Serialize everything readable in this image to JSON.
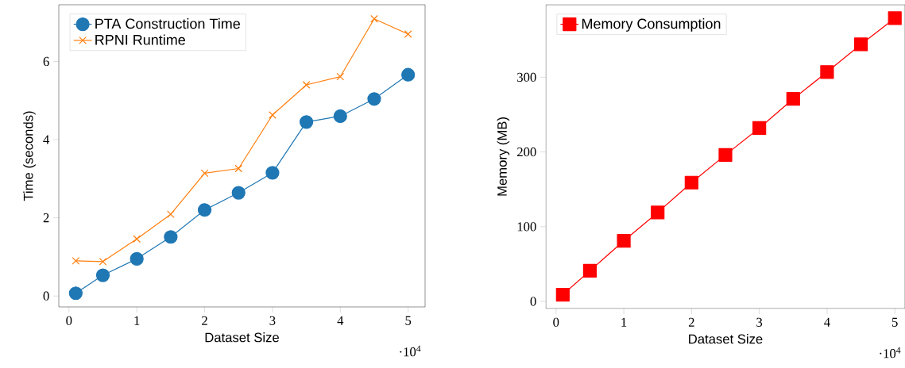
{
  "chart_data": [
    {
      "type": "line",
      "xlabel": "Dataset Size",
      "ylabel": "Time (seconds)",
      "x": [
        0.1,
        0.5,
        1,
        1.5,
        2,
        2.5,
        3,
        3.5,
        4,
        4.5,
        5
      ],
      "series": [
        {
          "name": "PTA Construction Time",
          "color": "#1f77b4",
          "marker": "circle",
          "values": [
            0.07,
            0.53,
            0.95,
            1.51,
            2.2,
            2.64,
            3.15,
            4.45,
            4.6,
            5.04,
            5.66
          ]
        },
        {
          "name": "RPNI Runtime",
          "color": "#ff7f0e",
          "marker": "cross",
          "values": [
            0.9,
            0.88,
            1.46,
            2.09,
            3.14,
            3.26,
            4.63,
            5.4,
            5.61,
            7.09,
            6.7
          ]
        }
      ],
      "xlim": [
        -0.15,
        5.25
      ],
      "ylim": [
        -0.28,
        7.45
      ],
      "xticks": [
        0,
        1,
        2,
        3,
        4,
        5
      ],
      "yticks": [
        0,
        2,
        4,
        6
      ],
      "legend": "top left",
      "annotations": [
        "·10$^{4}$"
      ]
    },
    {
      "type": "line",
      "xlabel": "Dataset Size",
      "ylabel": "Memory (MB)",
      "x": [
        0.1,
        0.5,
        1,
        1.5,
        2,
        2.5,
        3,
        3.5,
        4,
        4.5,
        5
      ],
      "series": [
        {
          "name": "Memory Consumption",
          "color": "#ff0000",
          "marker": "square",
          "values": [
            9,
            41,
            81,
            119,
            159,
            196,
            232,
            271,
            307,
            344,
            379
          ]
        }
      ],
      "xlim": [
        -0.15,
        5.15
      ],
      "ylim": [
        -9.5,
        397
      ],
      "xticks": [
        0,
        1,
        2,
        3,
        4,
        5
      ],
      "yticks": [
        0,
        100,
        200,
        300
      ],
      "legend": "top left",
      "annotations": [
        "·10$^{4}$"
      ]
    }
  ]
}
